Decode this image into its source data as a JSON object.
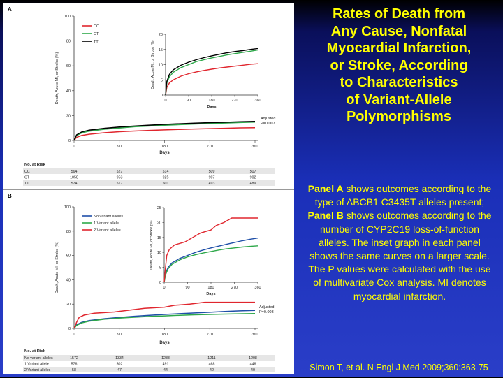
{
  "slide": {
    "title_lines": [
      "Rates of Death from",
      "Any Cause, Nonfatal",
      "Myocardial Infarction,",
      "or Stroke, According",
      "to Characteristics",
      "of Variant-Allele",
      "Polymorphisms"
    ],
    "description": {
      "panel_a_label": "Panel A",
      "panel_a_text": " shows outcomes according to the type of ABCB1 C3435T alleles present;",
      "panel_b_label": "Panel B",
      "panel_b_text": " shows outcomes according to the number of CYP2C19 loss-of-function alleles. The inset graph in each panel shows the same curves on a larger scale. The P values were calculated with the use of multivariate Cox analysis. MI denotes myocardial infarction."
    },
    "citation": "Simon T, et al. N Engl J Med 2009;360:363-75",
    "colors": {
      "background_top": "#000000",
      "background_bottom": "#2a3ec8",
      "text": "#ffff00"
    }
  },
  "chart_data": [
    {
      "type": "line",
      "panel_label": "A",
      "ylabel": "Death, Acute MI, or Stroke (%)",
      "xlabel": "Days",
      "ylim": [
        0,
        100
      ],
      "yticks": [
        0,
        20,
        40,
        60,
        80,
        100
      ],
      "xlim": [
        0,
        360
      ],
      "xticks": [
        0,
        90,
        180,
        270,
        360
      ],
      "legend_position": "top-left",
      "series": [
        {
          "name": "CC",
          "color": "#e0262e",
          "x": [
            0,
            5,
            15,
            30,
            60,
            90,
            120,
            150,
            180,
            210,
            240,
            270,
            300,
            330,
            360
          ],
          "y": [
            0,
            2.5,
            4,
            5,
            6.2,
            7,
            7.6,
            8.1,
            8.5,
            8.9,
            9.2,
            9.5,
            9.8,
            10.1,
            10.3
          ]
        },
        {
          "name": "CT",
          "color": "#2ea84a",
          "x": [
            0,
            5,
            15,
            30,
            60,
            90,
            120,
            150,
            180,
            210,
            240,
            270,
            300,
            330,
            360
          ],
          "y": [
            0,
            4,
            6,
            7.5,
            9,
            10,
            11,
            11.6,
            12.2,
            12.7,
            13.2,
            13.6,
            14,
            14.4,
            14.8
          ]
        },
        {
          "name": "TT",
          "color": "#000000",
          "x": [
            0,
            5,
            15,
            30,
            60,
            90,
            120,
            150,
            180,
            210,
            240,
            270,
            300,
            330,
            360
          ],
          "y": [
            0,
            4.5,
            6.8,
            8.3,
            9.8,
            10.8,
            11.6,
            12.3,
            12.9,
            13.4,
            13.9,
            14.3,
            14.6,
            15,
            15.3
          ]
        }
      ],
      "annotation": [
        "Adjusted",
        "P=0.007"
      ],
      "inset": {
        "ylim": [
          0,
          20
        ],
        "yticks": [
          0,
          5,
          10,
          15,
          20
        ],
        "xlim": [
          0,
          360
        ],
        "xticks": [
          0,
          90,
          180,
          270,
          360
        ],
        "ylabel": "Death, Acute MI, or Stroke (%)",
        "xlabel": "Days"
      },
      "risk_table": {
        "header": "No. at Risk",
        "rows": [
          {
            "label": "CC",
            "values": [
              564,
              527,
              514,
              509,
              507
            ]
          },
          {
            "label": "CT",
            "values": [
              1050,
              953,
              925,
              907,
              902
            ]
          },
          {
            "label": "TT",
            "values": [
              574,
              517,
              501,
              493,
              489
            ]
          }
        ]
      }
    },
    {
      "type": "line",
      "panel_label": "B",
      "ylabel": "Death, Acute MI, or Stroke (%)",
      "xlabel": "Days",
      "ylim": [
        0,
        100
      ],
      "yticks": [
        0,
        20,
        40,
        60,
        80,
        100
      ],
      "xlim": [
        0,
        360
      ],
      "xticks": [
        0,
        90,
        180,
        270,
        360
      ],
      "legend_position": "top-left",
      "series": [
        {
          "name": "No variant alleles",
          "color": "#1f4fa8",
          "x": [
            0,
            5,
            15,
            30,
            60,
            90,
            120,
            150,
            180,
            210,
            240,
            270,
            300,
            330,
            360
          ],
          "y": [
            0,
            3,
            5,
            6.5,
            8,
            9,
            10,
            10.8,
            11.5,
            12.1,
            12.7,
            13.3,
            13.9,
            14.4,
            14.8
          ]
        },
        {
          "name": "1 Variant allele",
          "color": "#2ea84a",
          "x": [
            0,
            5,
            15,
            30,
            60,
            90,
            120,
            150,
            180,
            210,
            240,
            270,
            300,
            330,
            360
          ],
          "y": [
            0,
            2.5,
            4.5,
            6,
            7.5,
            8.5,
            9.2,
            9.8,
            10.3,
            10.8,
            11.2,
            11.5,
            11.8,
            12,
            12.2
          ]
        },
        {
          "name": "2 Variant alleles",
          "color": "#e0262e",
          "x": [
            0,
            5,
            10,
            20,
            40,
            80,
            110,
            140,
            180,
            200,
            230,
            260,
            300,
            330,
            360
          ],
          "y": [
            0,
            5,
            9,
            11,
            12.5,
            13.5,
            15,
            16.5,
            17.5,
            19,
            20,
            21.5,
            21.5,
            21.5,
            21.5
          ]
        }
      ],
      "annotation": [
        "Adjusted",
        "P=0.003"
      ],
      "inset": {
        "ylim": [
          0,
          25
        ],
        "yticks": [
          0,
          5,
          10,
          15,
          20,
          25
        ],
        "xlim": [
          0,
          360
        ],
        "xticks": [
          0,
          90,
          180,
          270,
          360
        ],
        "ylabel": "Death, Acute MI, or Stroke (%)",
        "xlabel": "Days"
      },
      "risk_table": {
        "header": "No. at Risk",
        "rows": [
          {
            "label": "No variant alleles",
            "values": [
              1572,
              1334,
              1288,
              1211,
              1208
            ]
          },
          {
            "label": "1 Variant allele",
            "values": [
              576,
              502,
              491,
              468,
              446
            ]
          },
          {
            "label": "2 Variant alleles",
            "values": [
              58,
              47,
              44,
              42,
              40
            ]
          }
        ]
      }
    }
  ]
}
